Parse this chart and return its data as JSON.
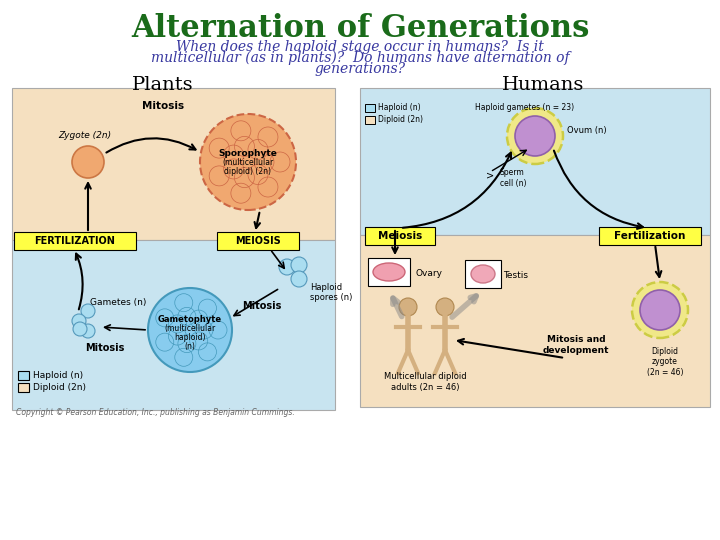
{
  "title": "Alternation of Generations",
  "title_color": "#1a6b1a",
  "title_fontsize": 22,
  "subtitle_line1": "When does the haploid stage occur in humans?  Is it",
  "subtitle_line2": "multicellular (as in plants)?  Do humans have alternation of",
  "subtitle_line3": "generations?",
  "subtitle_color": "#3838a0",
  "subtitle_fontsize": 10,
  "plants_label": "Plants",
  "humans_label": "Humans",
  "label_fontsize": 14,
  "bg_color": "#ffffff",
  "plants_bg_top_color": "#f5e0c0",
  "plants_bg_bot_color": "#c8e4f0",
  "humans_bg_top_color": "#c8e4f0",
  "humans_bg_bot_color": "#f5e0c0",
  "copyright": "Copyright © Pearson Education, Inc., publishing as Benjamin Cummings.",
  "copyright_fontsize": 5.5
}
